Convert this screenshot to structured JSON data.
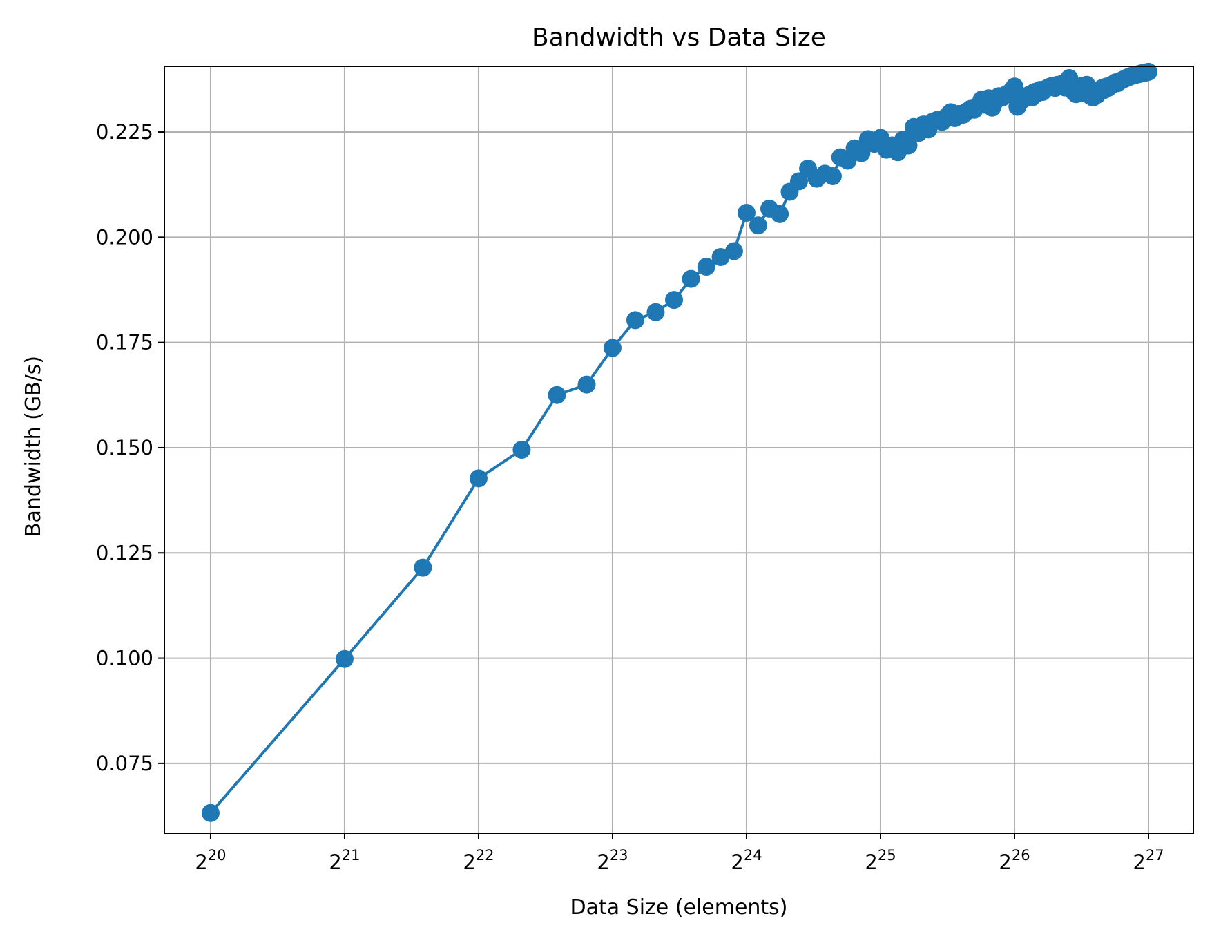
{
  "chart_data": {
    "type": "line",
    "title": "Bandwidth vs Data Size",
    "xlabel": "Data Size (elements)",
    "ylabel": "Bandwidth (GB/s)",
    "x_scale": "log2",
    "x_tick_base": "2",
    "x_ticks": [
      20,
      21,
      22,
      23,
      24,
      25,
      26,
      27
    ],
    "y_ticks": [
      "0.075",
      "0.100",
      "0.125",
      "0.150",
      "0.175",
      "0.200",
      "0.225"
    ],
    "xlim_log2": [
      19.655,
      27.335
    ],
    "ylim": [
      0.0584,
      0.2406
    ],
    "grid": true,
    "color": "#1f77b4",
    "series": [
      {
        "points": [
          [
            20.0,
            0.0632
          ],
          [
            21.0,
            0.0998
          ],
          [
            21.585,
            0.1215
          ],
          [
            22.0,
            0.1427
          ],
          [
            22.322,
            0.1495
          ],
          [
            22.585,
            0.1625
          ],
          [
            22.807,
            0.165
          ],
          [
            23.0,
            0.1737
          ],
          [
            23.17,
            0.1803
          ],
          [
            23.322,
            0.1822
          ],
          [
            23.459,
            0.1851
          ],
          [
            23.585,
            0.1901
          ],
          [
            23.7,
            0.193
          ],
          [
            23.807,
            0.1953
          ],
          [
            23.907,
            0.1967
          ],
          [
            24.0,
            0.2058
          ],
          [
            24.087,
            0.2028
          ],
          [
            24.17,
            0.2068
          ],
          [
            24.248,
            0.2055
          ],
          [
            24.322,
            0.2108
          ],
          [
            24.392,
            0.2133
          ],
          [
            24.459,
            0.2163
          ],
          [
            24.524,
            0.2139
          ],
          [
            24.585,
            0.2151
          ],
          [
            24.644,
            0.2145
          ],
          [
            24.7,
            0.219
          ],
          [
            24.755,
            0.2182
          ],
          [
            24.807,
            0.2211
          ],
          [
            24.858,
            0.22
          ],
          [
            24.907,
            0.2233
          ],
          [
            24.954,
            0.2222
          ],
          [
            25.0,
            0.2236
          ],
          [
            25.044,
            0.2208
          ],
          [
            25.087,
            0.2218
          ],
          [
            25.129,
            0.2202
          ],
          [
            25.17,
            0.2232
          ],
          [
            25.209,
            0.2218
          ],
          [
            25.248,
            0.2262
          ],
          [
            25.285,
            0.2248
          ],
          [
            25.322,
            0.2268
          ],
          [
            25.358,
            0.2256
          ],
          [
            25.392,
            0.2275
          ],
          [
            25.426,
            0.2279
          ],
          [
            25.459,
            0.2274
          ],
          [
            25.492,
            0.2286
          ],
          [
            25.524,
            0.2297
          ],
          [
            25.555,
            0.2283
          ],
          [
            25.585,
            0.2293
          ],
          [
            25.615,
            0.2291
          ],
          [
            25.644,
            0.2299
          ],
          [
            25.672,
            0.2305
          ],
          [
            25.7,
            0.2303
          ],
          [
            25.728,
            0.2313
          ],
          [
            25.755,
            0.2327
          ],
          [
            25.781,
            0.2315
          ],
          [
            25.807,
            0.233
          ],
          [
            25.833,
            0.2308
          ],
          [
            25.858,
            0.2324
          ],
          [
            25.883,
            0.2335
          ],
          [
            25.907,
            0.2332
          ],
          [
            25.931,
            0.2338
          ],
          [
            25.954,
            0.234
          ],
          [
            25.977,
            0.2348
          ],
          [
            26.0,
            0.2358
          ],
          [
            26.022,
            0.231
          ],
          [
            26.044,
            0.2322
          ],
          [
            26.066,
            0.2328
          ],
          [
            26.087,
            0.2335
          ],
          [
            26.108,
            0.2338
          ],
          [
            26.129,
            0.2332
          ],
          [
            26.149,
            0.2345
          ],
          [
            26.17,
            0.2342
          ],
          [
            26.19,
            0.235
          ],
          [
            26.209,
            0.2345
          ],
          [
            26.229,
            0.2352
          ],
          [
            26.248,
            0.2355
          ],
          [
            26.267,
            0.2358
          ],
          [
            26.285,
            0.236
          ],
          [
            26.304,
            0.2355
          ],
          [
            26.322,
            0.2362
          ],
          [
            26.34,
            0.236
          ],
          [
            26.358,
            0.2365
          ],
          [
            26.375,
            0.2356
          ],
          [
            26.392,
            0.236
          ],
          [
            26.409,
            0.2378
          ],
          [
            26.426,
            0.2352
          ],
          [
            26.443,
            0.2345
          ],
          [
            26.459,
            0.234
          ],
          [
            26.476,
            0.2348
          ],
          [
            26.492,
            0.2342
          ],
          [
            26.508,
            0.236
          ],
          [
            26.524,
            0.2355
          ],
          [
            26.539,
            0.2362
          ],
          [
            26.555,
            0.2348
          ],
          [
            26.57,
            0.2335
          ],
          [
            26.585,
            0.2332
          ],
          [
            26.6,
            0.2342
          ],
          [
            26.615,
            0.2338
          ],
          [
            26.63,
            0.2345
          ],
          [
            26.644,
            0.2352
          ],
          [
            26.658,
            0.2355
          ],
          [
            26.672,
            0.235
          ],
          [
            26.686,
            0.2358
          ],
          [
            26.7,
            0.2355
          ],
          [
            26.714,
            0.236
          ],
          [
            26.728,
            0.2362
          ],
          [
            26.741,
            0.2365
          ],
          [
            26.755,
            0.2368
          ],
          [
            26.768,
            0.2366
          ],
          [
            26.781,
            0.237
          ],
          [
            26.794,
            0.2372
          ],
          [
            26.807,
            0.2374
          ],
          [
            26.82,
            0.2376
          ],
          [
            26.833,
            0.2378
          ],
          [
            26.845,
            0.238
          ],
          [
            26.858,
            0.2381
          ],
          [
            26.87,
            0.2383
          ],
          [
            26.883,
            0.2384
          ],
          [
            26.895,
            0.2385
          ],
          [
            26.907,
            0.2386
          ],
          [
            26.919,
            0.2387
          ],
          [
            26.931,
            0.2388
          ],
          [
            26.943,
            0.2389
          ],
          [
            26.954,
            0.239
          ],
          [
            26.966,
            0.239
          ],
          [
            26.977,
            0.2391
          ],
          [
            26.989,
            0.2392
          ],
          [
            27.0,
            0.2393
          ]
        ]
      }
    ]
  }
}
